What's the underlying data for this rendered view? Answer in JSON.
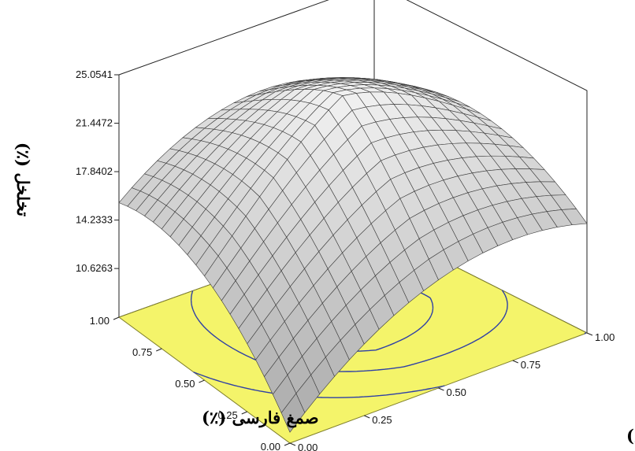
{
  "chart_data": {
    "type": "surface3d",
    "zlabel": "تخلخل (٪)",
    "xlabel": "صمغ دانه ریحان (٪)",
    "ylabel": "صمغ فارسی (٪)",
    "z_ticks": [
      "25.0541",
      "21.4472",
      "17.8402",
      "14.2333",
      "10.6263"
    ],
    "x_ticks": [
      "0.00",
      "0.25",
      "0.50",
      "0.75",
      "1.00"
    ],
    "y_ticks": [
      "0.00",
      "0.25",
      "0.50",
      "0.75",
      "1.00"
    ],
    "z_range": [
      7.0,
      25.0541
    ],
    "x_range": [
      0,
      1
    ],
    "y_range": [
      0,
      1
    ],
    "surface": {
      "peak": 24.9,
      "peak_x": 0.6,
      "peak_y": 0.6,
      "corner_values": {
        "x0_y0": 7.5,
        "x1_y0": 13.6,
        "x0_y1": 15.8,
        "x1_y1": 17.4
      }
    },
    "contour_levels": [
      15.2,
      19.0,
      21.8,
      23.5
    ],
    "colors": {
      "floor": "#f4f46a",
      "floor_edge": "#7f7f2a",
      "contour": "#2e3fa6",
      "surface_light": "#f4f4f4",
      "surface_dark": "#7a7a7a",
      "mesh": "#3a3a3a"
    }
  }
}
